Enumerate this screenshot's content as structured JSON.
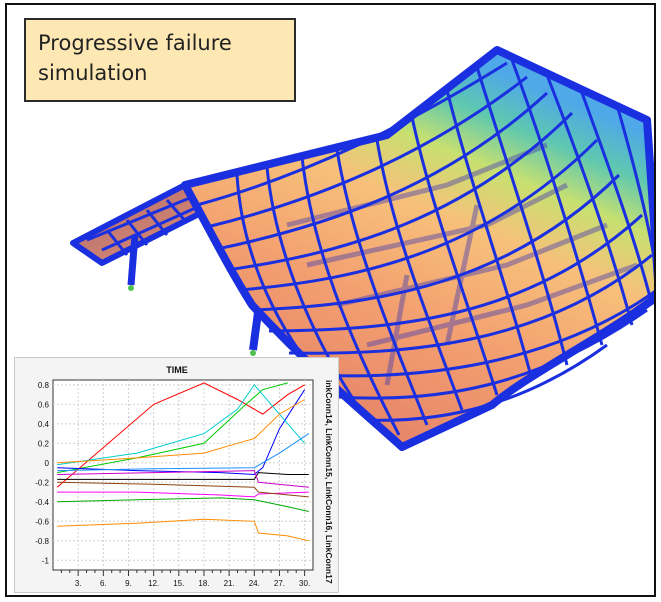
{
  "caption": {
    "line1": "Progressive failure",
    "line2": "simulation"
  },
  "inset_plot": {
    "title": "TIME",
    "right_label": "inkConn14, LinkConn15, LinkConn16, LinkConn17",
    "y_ticks": [
      "0.8",
      "0.6",
      "0.4",
      "0.2",
      "0",
      "-0.2",
      "-0.4",
      "-0.6",
      "-0.8",
      "-1"
    ],
    "x_ticks": [
      "3.",
      "6.",
      "9.",
      "12.",
      "15.",
      "18.",
      "21.",
      "24.",
      "27.",
      "30."
    ]
  },
  "chart_data": {
    "type": "line",
    "title": "TIME",
    "ylim": [
      -1.1,
      0.85
    ],
    "xlim": [
      0,
      31
    ],
    "grid": true,
    "series": [
      {
        "color": "#ff0000",
        "points": [
          [
            0.5,
            -0.25
          ],
          [
            12,
            0.6
          ],
          [
            18,
            0.82
          ],
          [
            22,
            0.65
          ],
          [
            25,
            0.5
          ],
          [
            28,
            0.7
          ],
          [
            30,
            0.8
          ]
        ]
      },
      {
        "color": "#00cc00",
        "points": [
          [
            0.5,
            -0.1
          ],
          [
            10,
            0.05
          ],
          [
            18,
            0.2
          ],
          [
            23,
            0.6
          ],
          [
            25,
            0.75
          ],
          [
            28,
            0.82
          ]
        ]
      },
      {
        "color": "#ff8c00",
        "points": [
          [
            0.5,
            -0.65
          ],
          [
            10,
            -0.62
          ],
          [
            18,
            -0.58
          ],
          [
            24,
            -0.6
          ],
          [
            24.5,
            -0.72
          ],
          [
            28,
            -0.75
          ],
          [
            30.5,
            -0.8
          ]
        ]
      },
      {
        "color": "#ff00ff",
        "points": [
          [
            0.5,
            -0.3
          ],
          [
            10,
            -0.3
          ],
          [
            20,
            -0.33
          ],
          [
            24,
            -0.35
          ],
          [
            24.5,
            -0.32
          ],
          [
            30.5,
            -0.3
          ]
        ]
      },
      {
        "color": "#0000ff",
        "points": [
          [
            0.5,
            -0.05
          ],
          [
            10,
            -0.08
          ],
          [
            20,
            -0.1
          ],
          [
            24,
            -0.12
          ],
          [
            25,
            -0.05
          ],
          [
            27,
            0.35
          ],
          [
            30,
            0.75
          ]
        ]
      },
      {
        "color": "#00cccc",
        "points": [
          [
            0.5,
            -0.02
          ],
          [
            10,
            0.1
          ],
          [
            18,
            0.3
          ],
          [
            22,
            0.55
          ],
          [
            24,
            0.8
          ],
          [
            26,
            0.6
          ],
          [
            30,
            0.2
          ]
        ]
      },
      {
        "color": "#000000",
        "points": [
          [
            0.5,
            -0.17
          ],
          [
            12,
            -0.17
          ],
          [
            24,
            -0.17
          ],
          [
            24.5,
            -0.1
          ],
          [
            28,
            -0.12
          ],
          [
            30.5,
            -0.12
          ]
        ]
      },
      {
        "color": "#ff8c00",
        "points": [
          [
            0.5,
            0.0
          ],
          [
            10,
            0.05
          ],
          [
            18,
            0.1
          ],
          [
            22,
            0.2
          ],
          [
            24,
            0.25
          ],
          [
            27,
            0.5
          ],
          [
            30,
            0.65
          ]
        ]
      },
      {
        "color": "#00aa00",
        "points": [
          [
            0.5,
            -0.4
          ],
          [
            10,
            -0.38
          ],
          [
            20,
            -0.36
          ],
          [
            24,
            -0.38
          ],
          [
            28,
            -0.45
          ],
          [
            30.5,
            -0.5
          ]
        ]
      },
      {
        "color": "#cc00cc",
        "points": [
          [
            0.5,
            -0.12
          ],
          [
            12,
            -0.1
          ],
          [
            24,
            -0.08
          ],
          [
            24.5,
            -0.2
          ],
          [
            30.5,
            -0.25
          ]
        ]
      },
      {
        "color": "#8b4513",
        "points": [
          [
            0.5,
            -0.2
          ],
          [
            12,
            -0.22
          ],
          [
            24,
            -0.25
          ],
          [
            24.5,
            -0.3
          ],
          [
            30.5,
            -0.35
          ]
        ]
      },
      {
        "color": "#1e90ff",
        "points": [
          [
            0.5,
            -0.08
          ],
          [
            12,
            -0.06
          ],
          [
            24,
            -0.05
          ],
          [
            27,
            0.1
          ],
          [
            30.5,
            0.3
          ]
        ]
      }
    ]
  },
  "colors": {
    "structure": "#1a2fe0",
    "caption_bg": "#fde8b4"
  }
}
